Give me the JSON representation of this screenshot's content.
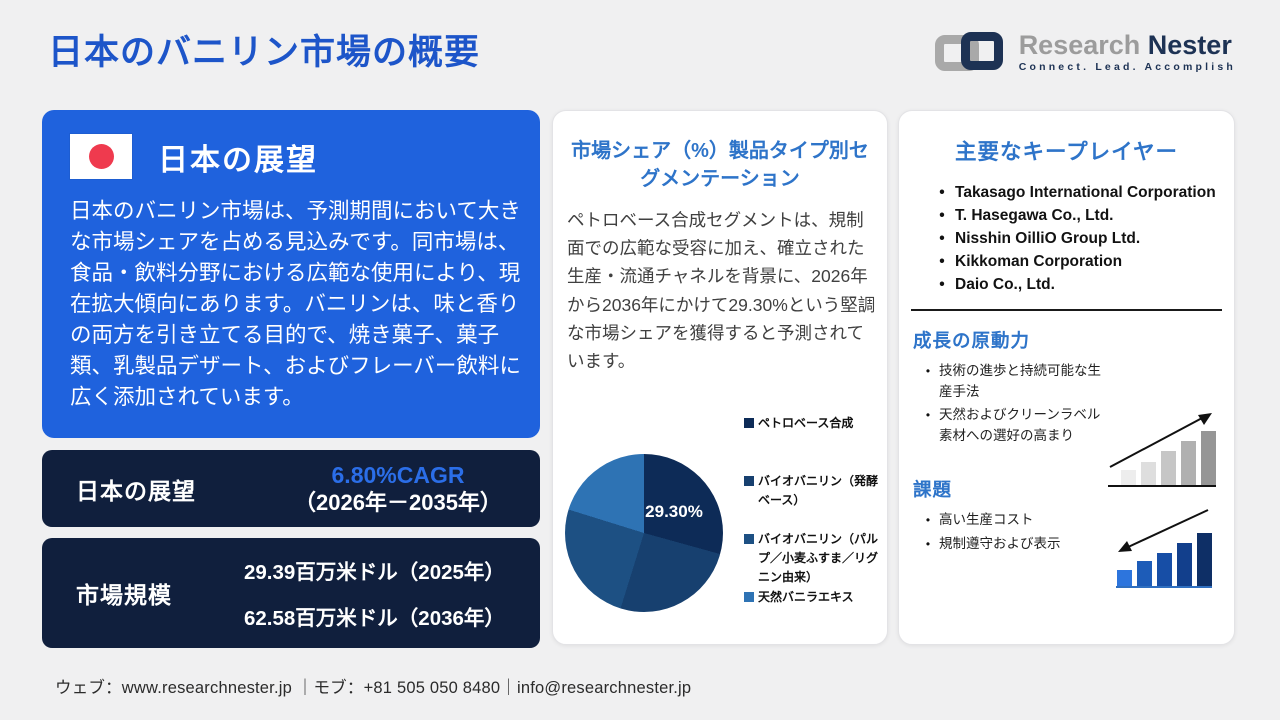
{
  "page": {
    "title": "日本のバニリン市場の概要",
    "background": "#f0f0f1"
  },
  "logo": {
    "name_part1": "Research ",
    "name_part2": "Nester",
    "tagline": "Connect. Lead. Accomplish"
  },
  "outlook_card": {
    "heading": "日本の展望",
    "body": "日本のバニリン市場は、予測期間において大きな市場シェアを占める見込みです。同市場は、食品・飲料分野における広範な使用により、現在拡大傾向にあります。バニリンは、味と香りの両方を引き立てる目的で、焼き菓子、菓子類、乳製品デザート、およびフレーバー飲料に広く添加されています。"
  },
  "cagr_card": {
    "label": "日本の展望",
    "value": "6.80%CAGR",
    "period": "（2026年－2035年）"
  },
  "market_size_card": {
    "label": "市場規模",
    "value_2025": "29.39百万米ドル（2025年）",
    "value_2036": "62.58百万米ドル（2036年）"
  },
  "segmentation_panel": {
    "heading": "市場シェア（%）製品タイプ別セグメンテーション",
    "body": "ペトロベース合成セグメントは、規制面での広範な受容に加え、確立された生産・流通チャネルを背景に、2026年から2036年にかけて29.30%という堅調な市場シェアを獲得すると予測されています。"
  },
  "chart_data": {
    "type": "pie",
    "title": "市場シェア（%）製品タイプ別セグメンテーション",
    "labels": [
      "ペトロベース合成",
      "バイオバニリン（発酵ベース）",
      "バイオバニリン（パルプ／小麦ふすま／リグニン由来）",
      "天然バニラエキス"
    ],
    "values": [
      29.3,
      25.5,
      25.0,
      20.2
    ],
    "colors": [
      "#0d2b57",
      "#17406f",
      "#1d5083",
      "#2e73b4"
    ],
    "annotation": "29.30%",
    "annotation_segment": "ペトロベース合成",
    "legend_position": "right",
    "start_angle_deg": 0,
    "direction": "clockwise"
  },
  "key_players_panel": {
    "heading": "主要なキープレイヤー",
    "bullet": "•",
    "companies": [
      "Takasago International Corporation",
      "T. Hasegawa Co., Ltd.",
      "Nisshin OilliO Group Ltd.",
      "Kikkoman Corporation",
      "Daio Co., Ltd."
    ],
    "growth": {
      "heading": "成長の原動力",
      "items": [
        "技術の進歩と持続可能な生産手法",
        "天然およびクリーンラベル素材への選好の高まり"
      ]
    },
    "challenges": {
      "heading": "課題",
      "items": [
        "高い生産コスト",
        "規制遵守および表示"
      ]
    }
  },
  "footer": {
    "text": "ウェブ：www.researchnester.jp ｜モブ：+81 505 050 8480｜info@researchnester.jp"
  },
  "icons": {
    "japan_flag": {
      "name": "japan-flag-icon",
      "circle_color": "#ef3a4e",
      "bg": "#ffffff"
    },
    "growth_chart": {
      "name": "growth-bar-chart-icon",
      "bar_colors": [
        "#ededed",
        "#dedede",
        "#c6c6c6",
        "#b0b0b0",
        "#969696"
      ],
      "bar_heights": [
        15,
        23,
        34,
        44,
        54
      ],
      "arrow_color": "#111111"
    },
    "challenges_chart": {
      "name": "challenges-bar-chart-icon",
      "bar_colors": [
        "#2d75dd",
        "#1d5cb8",
        "#174ea6",
        "#123f8c",
        "#0e2f66"
      ],
      "bar_heights": [
        16,
        25,
        33,
        43,
        53
      ],
      "arrow_color": "#111111",
      "underline_color": "#2f6fc0"
    }
  },
  "colors": {
    "title_blue": "#1d55c9",
    "panel_heading_blue": "#2e74c9",
    "outlook_card_blue": "#1f62dd",
    "dark_card_navy": "#101f3d",
    "cagr_value_blue": "#2b6ee8"
  }
}
